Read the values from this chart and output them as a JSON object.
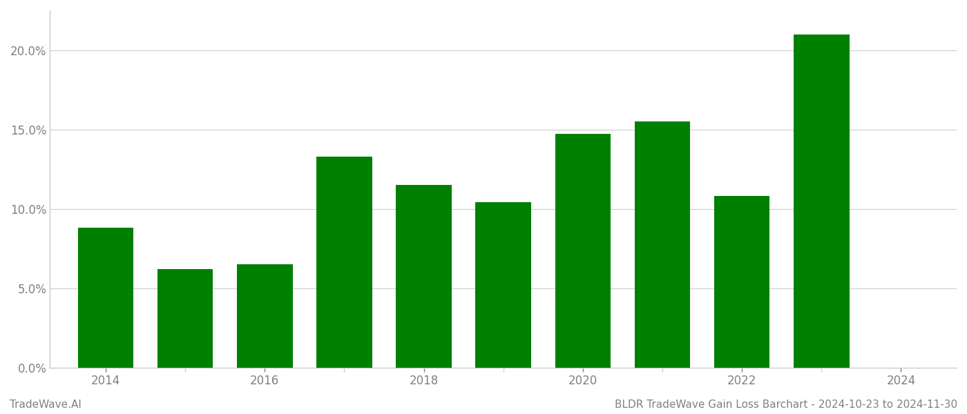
{
  "years": [
    2014,
    2015,
    2016,
    2017,
    2018,
    2019,
    2020,
    2021,
    2022,
    2023
  ],
  "values": [
    0.088,
    0.062,
    0.065,
    0.133,
    0.115,
    0.104,
    0.147,
    0.155,
    0.108,
    0.21
  ],
  "bar_color": "#008000",
  "background_color": "#ffffff",
  "grid_color": "#cccccc",
  "ylim": [
    0,
    0.225
  ],
  "yticks": [
    0.0,
    0.05,
    0.1,
    0.15,
    0.2
  ],
  "footer_left": "TradeWave.AI",
  "footer_right": "BLDR TradeWave Gain Loss Barchart - 2024-10-23 to 2024-11-30",
  "footer_color": "#808080",
  "footer_fontsize": 11,
  "tick_label_color": "#808080",
  "bar_width": 0.7,
  "spine_color": "#cccccc",
  "xtick_labeled": [
    2014,
    2016,
    2018,
    2020,
    2022,
    2024
  ],
  "xtick_all": [
    2014,
    2015,
    2016,
    2017,
    2018,
    2019,
    2020,
    2021,
    2022,
    2023,
    2024
  ],
  "xlim": [
    2013.3,
    2024.7
  ]
}
